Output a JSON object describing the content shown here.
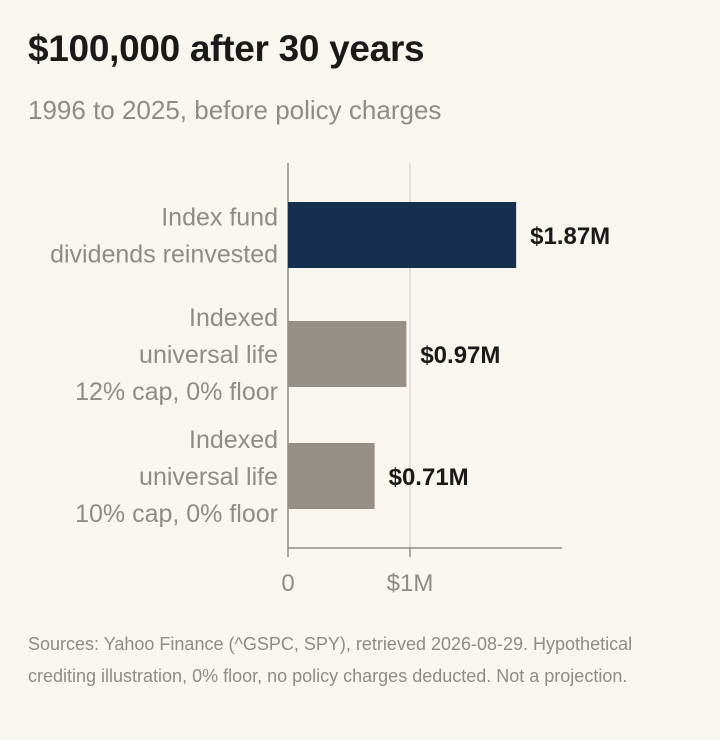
{
  "header": {
    "title": "$100,000 after 30 years",
    "subtitle": "1996 to 2025, before policy charges"
  },
  "chart_data": {
    "type": "bar",
    "orientation": "horizontal",
    "title": "$100,000 after 30 years",
    "subtitle": "1996 to 2025, before policy charges",
    "categories": [
      [
        "Index fund",
        "dividends reinvested"
      ],
      [
        "Indexed",
        "universal life",
        "12% cap, 0% floor"
      ],
      [
        "Indexed",
        "universal life",
        "10% cap, 0% floor"
      ]
    ],
    "values": [
      1.87,
      0.97,
      0.71
    ],
    "value_labels": [
      "$1.87M",
      "$0.97M",
      "$0.71M"
    ],
    "bar_colors": [
      "#172f4f",
      "#958f85",
      "#958f85"
    ],
    "unit": "millions of dollars",
    "xlim": [
      0,
      2.25
    ],
    "x_ticks": [
      {
        "value": 0,
        "label": "0"
      },
      {
        "value": 1,
        "label": "$1M"
      }
    ],
    "grid": true,
    "legend": "none",
    "xlabel": "",
    "ylabel": ""
  },
  "footer": {
    "source_note": "Sources: Yahoo Finance (^GSPC, SPY), retrieved 2026-08-29. Hypothetical crediting illustration, 0% floor, no policy charges deducted. Not a projection."
  },
  "colors": {
    "background": "#f9f6f0",
    "title": "#1a1a1a",
    "muted_text": "#8f8b85",
    "gridline": "#d2cec7",
    "axis": "#8f8b85"
  }
}
